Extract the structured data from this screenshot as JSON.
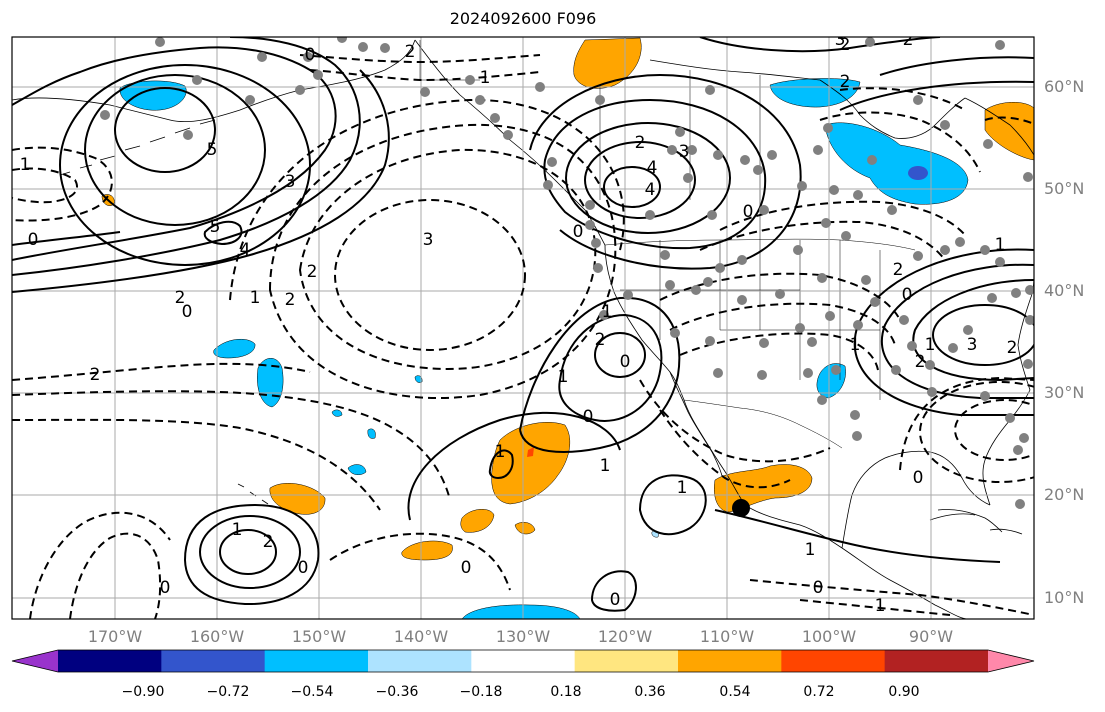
{
  "title": "2024092600 F096",
  "lat_labels": [
    "60°N",
    "50°N",
    "40°N",
    "30°N",
    "20°N",
    "10°N"
  ],
  "lon_labels": [
    "170°W",
    "160°W",
    "150°W",
    "140°W",
    "130°W",
    "120°W",
    "110°W",
    "100°W",
    "90°W"
  ],
  "contour_labels": [
    {
      "t": "0"
    },
    {
      "t": "2"
    },
    {
      "t": "1"
    },
    {
      "t": "5"
    },
    {
      "t": "3"
    },
    {
      "t": "5"
    },
    {
      "t": "4"
    },
    {
      "t": "0"
    },
    {
      "t": "2"
    },
    {
      "t": "1"
    },
    {
      "t": "2"
    },
    {
      "t": "2"
    },
    {
      "t": "0"
    },
    {
      "t": "3"
    },
    {
      "t": "1"
    },
    {
      "t": "2"
    },
    {
      "t": "4"
    },
    {
      "t": "3"
    },
    {
      "t": "2"
    },
    {
      "t": "0"
    },
    {
      "t": "0"
    },
    {
      "t": "2"
    },
    {
      "t": "1"
    },
    {
      "t": "2"
    },
    {
      "t": "0"
    },
    {
      "t": "1"
    },
    {
      "t": "1"
    },
    {
      "t": "0"
    },
    {
      "t": "1"
    },
    {
      "t": "1"
    },
    {
      "t": "1"
    },
    {
      "t": "0"
    },
    {
      "t": "1"
    },
    {
      "t": "1"
    },
    {
      "t": "2"
    },
    {
      "t": "2"
    },
    {
      "t": "0"
    },
    {
      "t": "0"
    },
    {
      "t": "3"
    },
    {
      "t": "2"
    },
    {
      "t": "4"
    },
    {
      "t": "2"
    },
    {
      "t": "1"
    },
    {
      "t": "0"
    },
    {
      "t": "0"
    },
    {
      "t": "0"
    },
    {
      "t": "0"
    },
    {
      "t": "1"
    },
    {
      "t": "2"
    },
    {
      "t": "1"
    },
    {
      "t": "3"
    },
    {
      "t": "2"
    }
  ],
  "colorbar": {
    "colors": [
      "#9933cc",
      "#000080",
      "#3355cc",
      "#00bfff",
      "#ade3ff",
      "#ffffff",
      "#ffe680",
      "#ffa500",
      "#ff4500",
      "#b22222",
      "#ff88aa"
    ],
    "tick_labels": [
      "−0.90",
      "−0.72",
      "−0.54",
      "−0.36",
      "−0.18",
      "0.18",
      "0.36",
      "0.54",
      "0.72",
      "0.90"
    ]
  }
}
